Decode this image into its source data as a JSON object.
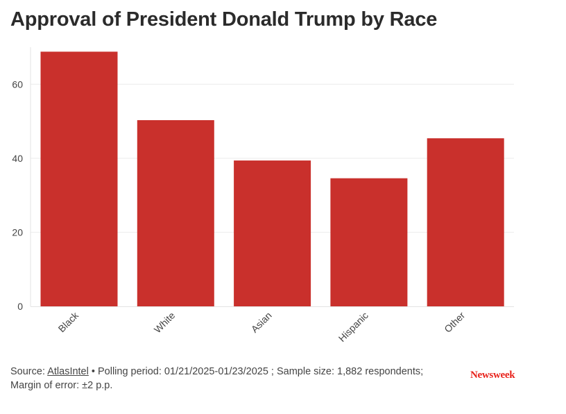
{
  "chart_data": {
    "type": "bar",
    "title": "Approval of President Donald Trump by Race",
    "categories": [
      "Black",
      "White",
      "Asian",
      "Hispanic",
      "Other"
    ],
    "values": [
      68.8,
      50.3,
      39.4,
      34.6,
      45.4
    ],
    "xlabel": "",
    "ylabel": "",
    "ylim": [
      0,
      70
    ],
    "yticks": [
      0,
      20,
      40,
      60
    ],
    "grid": true,
    "bar_color": "#c9302c"
  },
  "footer": {
    "source_prefix": "Source: ",
    "source_link": "AtlasIntel",
    "source_rest": " • Polling period: 01/21/2025-01/23/2025 ; Sample size: 1,882 respondents;",
    "margin_line": "Margin of error: ±2 p.p."
  },
  "brand": {
    "logo_text": "Newsweek",
    "logo_color": "#e8221b"
  }
}
